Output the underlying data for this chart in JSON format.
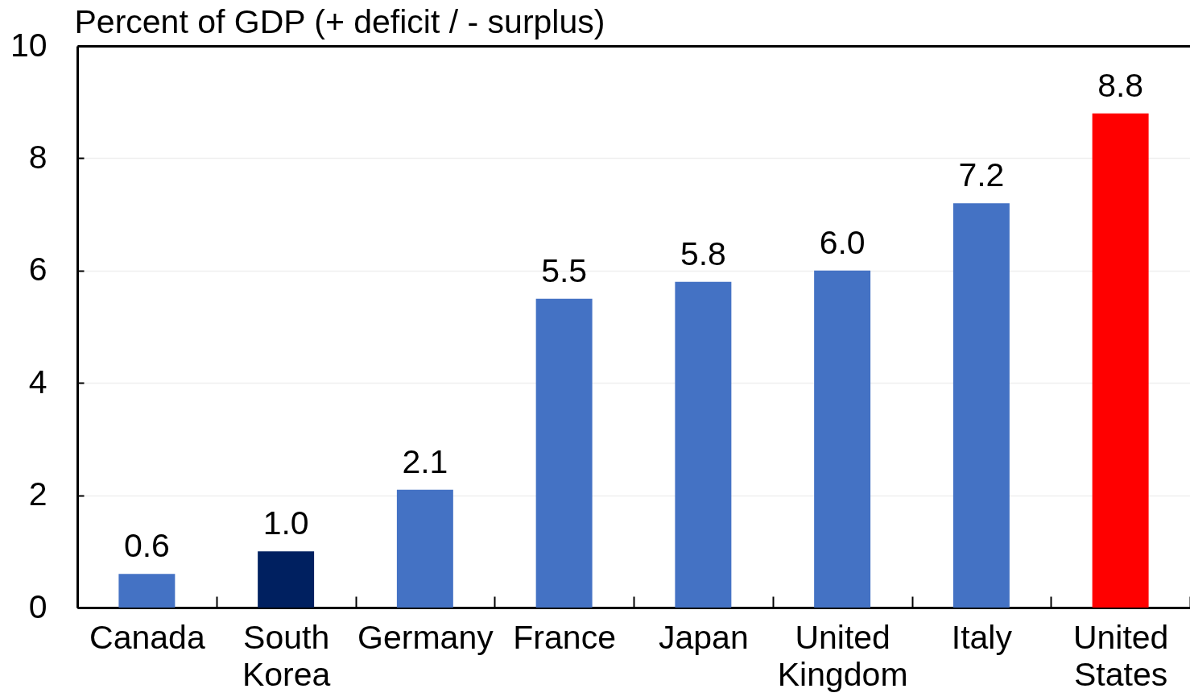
{
  "chart_data": {
    "type": "bar",
    "ylabel": "Percent of GDP (+ deficit / - surplus)",
    "categories": [
      "Canada",
      "South Korea",
      "Germany",
      "France",
      "Japan",
      "United Kingdom",
      "Italy",
      "United States"
    ],
    "values": [
      0.6,
      1.0,
      2.1,
      5.5,
      5.8,
      6.0,
      7.2,
      8.8
    ],
    "value_labels": [
      "0.6",
      "1.0",
      "2.1",
      "5.5",
      "5.8",
      "6.0",
      "7.2",
      "8.8"
    ],
    "colors": [
      "#4472c4",
      "#002060",
      "#4472c4",
      "#4472c4",
      "#4472c4",
      "#4472c4",
      "#4472c4",
      "#ff0000"
    ],
    "ylim": [
      0,
      10
    ],
    "yticks": [
      0,
      2,
      4,
      6,
      8,
      10
    ],
    "grid": "y"
  }
}
